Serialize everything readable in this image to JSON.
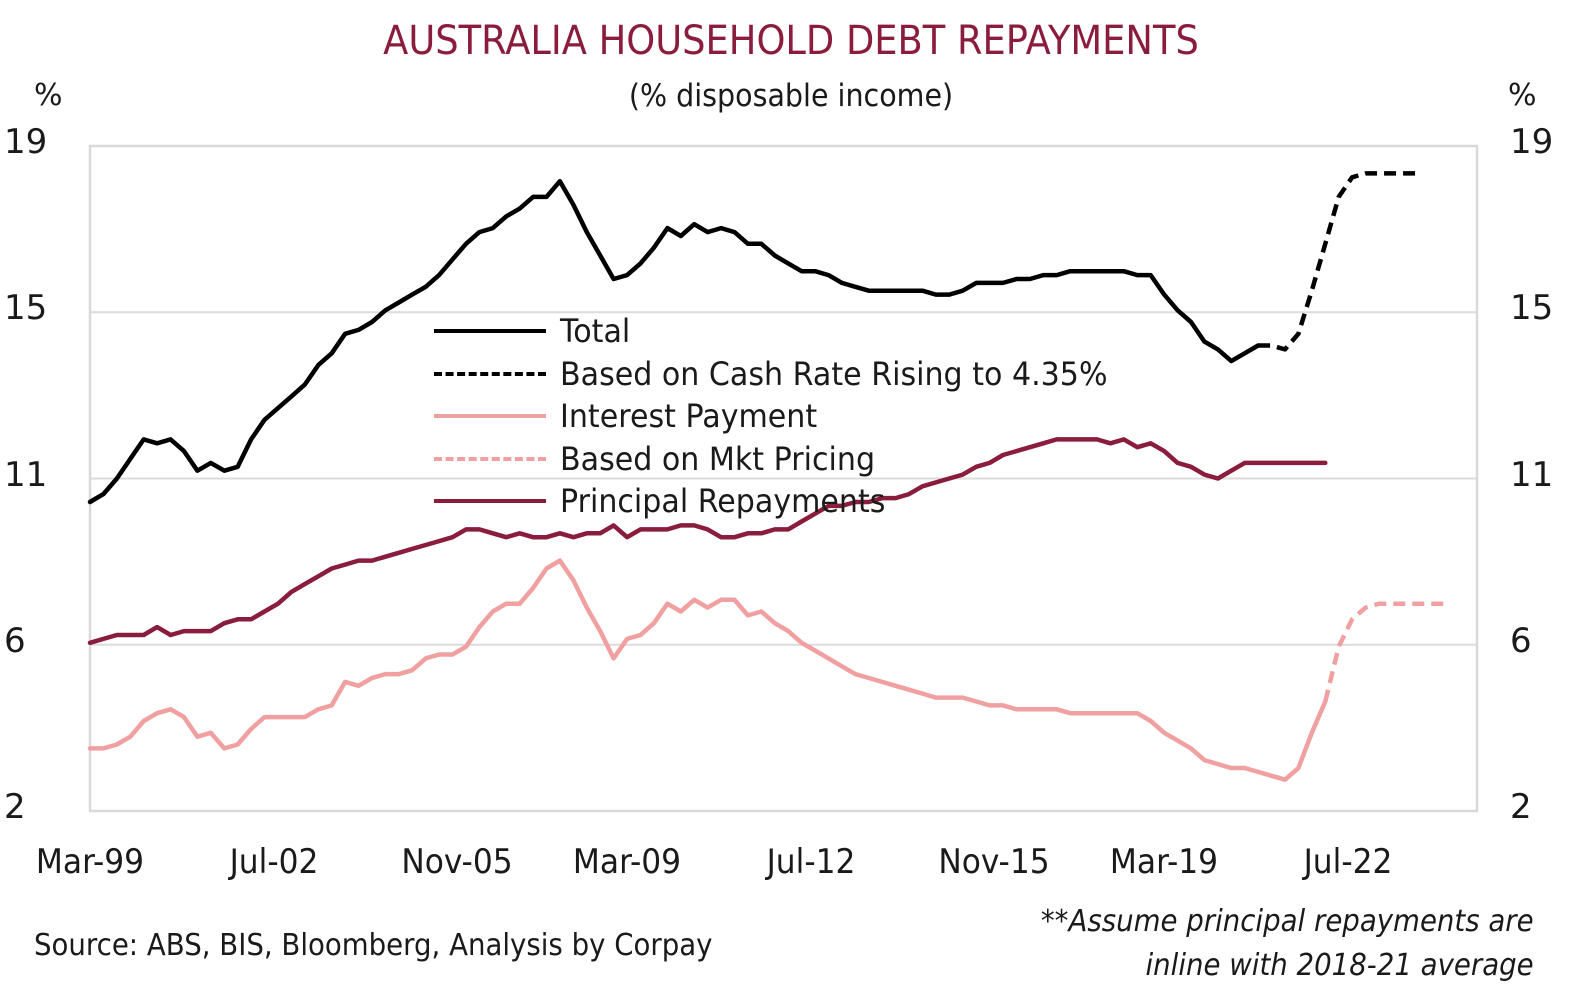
{
  "chart_data": {
    "type": "line",
    "title": "AUSTRALIA HOUSEHOLD DEBT REPAYMENTS",
    "subtitle": "(% disposable income)",
    "ylabel_left": "%",
    "ylabel_right": "%",
    "xlabel": "",
    "ylim": [
      2,
      19
    ],
    "yticks": [
      "19",
      "15",
      "11",
      "6",
      "2"
    ],
    "ytick_values": [
      19,
      14.75,
      10.5,
      6.25,
      2
    ],
    "xtick_labels": [
      "Mar-99",
      "Jul-02",
      "Nov-05",
      "Mar-09",
      "Jul-12",
      "Nov-15",
      "Mar-19",
      "Jul-22"
    ],
    "xtick_quarter_index": [
      0,
      13.67,
      27.33,
      40,
      53.67,
      67.33,
      80,
      93.67
    ],
    "x_start": "Mar-99",
    "x_frequency": "quarterly",
    "x_range_quarters": [
      0,
      103.3
    ],
    "grid": true,
    "legend_position": "center-left",
    "series": [
      {
        "name": "Total",
        "color": "#000000",
        "style": "solid",
        "start_index": 0,
        "values": [
          9.9,
          10.1,
          10.5,
          11.0,
          11.5,
          11.4,
          11.5,
          11.2,
          10.7,
          10.9,
          10.7,
          10.8,
          11.5,
          12.0,
          12.3,
          12.6,
          12.9,
          13.4,
          13.7,
          14.2,
          14.3,
          14.5,
          14.8,
          15.0,
          15.2,
          15.4,
          15.7,
          16.1,
          16.5,
          16.8,
          16.9,
          17.2,
          17.4,
          17.7,
          17.7,
          18.1,
          17.5,
          16.8,
          16.2,
          15.6,
          15.7,
          16.0,
          16.4,
          16.9,
          16.7,
          17.0,
          16.8,
          16.9,
          16.8,
          16.5,
          16.5,
          16.2,
          16.0,
          15.8,
          15.8,
          15.7,
          15.5,
          15.4,
          15.3,
          15.3,
          15.3,
          15.3,
          15.3,
          15.2,
          15.2,
          15.3,
          15.5,
          15.5,
          15.5,
          15.6,
          15.6,
          15.7,
          15.7,
          15.8,
          15.8,
          15.8,
          15.8,
          15.8,
          15.7,
          15.7,
          15.2,
          14.8,
          14.5,
          14.0,
          13.8,
          13.5,
          13.7,
          13.9
        ]
      },
      {
        "name": "Based on Cash Rate Rising to 4.35%",
        "color": "#000000",
        "style": "dashed",
        "start_index": 87,
        "values": [
          13.9,
          13.9,
          13.8,
          14.2,
          15.3,
          16.5,
          17.7,
          18.2,
          18.3,
          18.3,
          18.3,
          18.3,
          18.3
        ]
      },
      {
        "name": "Interest Payment",
        "color": "#f0a0a0",
        "style": "solid",
        "start_index": 0,
        "values": [
          3.6,
          3.6,
          3.7,
          3.9,
          4.3,
          4.5,
          4.6,
          4.4,
          3.9,
          4.0,
          3.6,
          3.7,
          4.1,
          4.4,
          4.4,
          4.4,
          4.4,
          4.6,
          4.7,
          5.3,
          5.2,
          5.4,
          5.5,
          5.5,
          5.6,
          5.9,
          6.0,
          6.0,
          6.2,
          6.7,
          7.1,
          7.3,
          7.3,
          7.7,
          8.2,
          8.4,
          7.9,
          7.2,
          6.6,
          5.9,
          6.4,
          6.5,
          6.8,
          7.3,
          7.1,
          7.4,
          7.2,
          7.4,
          7.4,
          7.0,
          7.1,
          6.8,
          6.6,
          6.3,
          6.1,
          5.9,
          5.7,
          5.5,
          5.4,
          5.3,
          5.2,
          5.1,
          5.0,
          4.9,
          4.9,
          4.9,
          4.8,
          4.7,
          4.7,
          4.6,
          4.6,
          4.6,
          4.6,
          4.5,
          4.5,
          4.5,
          4.5,
          4.5,
          4.5,
          4.3,
          4.0,
          3.8,
          3.6,
          3.3,
          3.2,
          3.1,
          3.1,
          3.0,
          2.9,
          2.8,
          3.1,
          4.0,
          4.8
        ]
      },
      {
        "name": "Based on Mkt Pricing",
        "color": "#f0a0a0",
        "style": "dashed",
        "start_index": 92,
        "values": [
          4.8,
          6.2,
          6.9,
          7.2,
          7.3,
          7.3,
          7.3,
          7.3,
          7.3,
          7.3
        ]
      },
      {
        "name": "Principal Repayments",
        "color": "#8a1c3e",
        "style": "solid",
        "start_index": 0,
        "values": [
          6.3,
          6.4,
          6.5,
          6.5,
          6.5,
          6.7,
          6.5,
          6.6,
          6.6,
          6.6,
          6.8,
          6.9,
          6.9,
          7.1,
          7.3,
          7.6,
          7.8,
          8.0,
          8.2,
          8.3,
          8.4,
          8.4,
          8.5,
          8.6,
          8.7,
          8.8,
          8.9,
          9.0,
          9.2,
          9.2,
          9.1,
          9.0,
          9.1,
          9.0,
          9.0,
          9.1,
          9.0,
          9.1,
          9.1,
          9.3,
          9.0,
          9.2,
          9.2,
          9.2,
          9.3,
          9.3,
          9.2,
          9.0,
          9.0,
          9.1,
          9.1,
          9.2,
          9.2,
          9.4,
          9.6,
          9.8,
          9.8,
          9.9,
          9.9,
          10.0,
          10.0,
          10.1,
          10.3,
          10.4,
          10.5,
          10.6,
          10.8,
          10.9,
          11.1,
          11.2,
          11.3,
          11.4,
          11.5,
          11.5,
          11.5,
          11.5,
          11.4,
          11.5,
          11.3,
          11.4,
          11.2,
          10.9,
          10.8,
          10.6,
          10.5,
          10.7,
          10.9,
          10.9,
          10.9,
          10.9,
          10.9,
          10.9,
          10.9
        ]
      }
    ]
  },
  "legend": {
    "items": [
      {
        "label": "Total"
      },
      {
        "label": "Based on Cash Rate Rising to 4.35%"
      },
      {
        "label": "Interest Payment"
      },
      {
        "label": "Based on Mkt Pricing"
      },
      {
        "label": "Principal Repayments"
      }
    ]
  },
  "footer": {
    "source": "Source: ABS, BIS, Bloomberg, Analysis by Corpay",
    "note_line1": "**Assume principal repayments are",
    "note_line2": "inline with 2018-21 average"
  }
}
